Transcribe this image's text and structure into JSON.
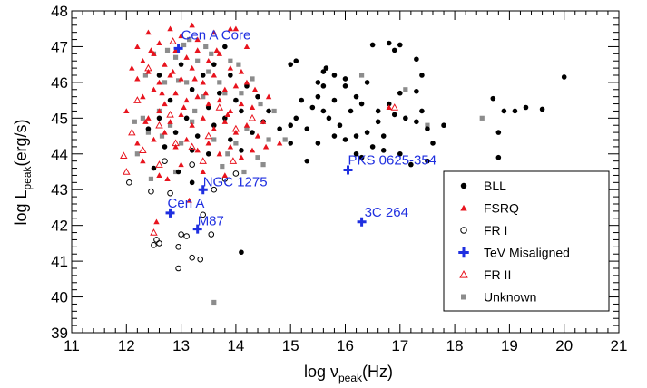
{
  "chart_data": {
    "type": "scatter",
    "xlabel_main": "log ν",
    "xlabel_sub": "peak",
    "xlabel_unit": "(Hz)",
    "ylabel_main": "log L",
    "ylabel_sub": "peak",
    "ylabel_unit": "(erg/s)",
    "xlim": [
      11,
      21
    ],
    "ylim": [
      39,
      48
    ],
    "xticks": [
      "11",
      "12",
      "13",
      "14",
      "15",
      "16",
      "17",
      "18",
      "19",
      "20",
      "21"
    ],
    "yticks": [
      "39",
      "40",
      "41",
      "42",
      "43",
      "44",
      "45",
      "46",
      "47",
      "48"
    ],
    "grid": false,
    "legend_position": "bottom-right",
    "colors": {
      "BLL": "#000000",
      "FSRQ": "#e8141e",
      "FR I": "#000000",
      "TeV Misaligned": "#1f2fe0",
      "FR II": "#e8141e",
      "Unknown": "#8c8c8c"
    },
    "legend": [
      {
        "name": "BLL",
        "marker": "filled-circle"
      },
      {
        "name": "FSRQ",
        "marker": "filled-triangle"
      },
      {
        "name": "FR I",
        "marker": "open-circle"
      },
      {
        "name": "TeV Misaligned",
        "marker": "cross"
      },
      {
        "name": "FR II",
        "marker": "open-triangle"
      },
      {
        "name": "Unknown",
        "marker": "filled-square"
      }
    ],
    "annotations": [
      {
        "text": "Cen A Core",
        "x": 13.0,
        "y": 47.2
      },
      {
        "text": "NGC 1275",
        "x": 13.4,
        "y": 43.1
      },
      {
        "text": "Cen A",
        "x": 12.75,
        "y": 42.5
      },
      {
        "text": "M87",
        "x": 13.3,
        "y": 42.0
      },
      {
        "text": "PKS 0625-354",
        "x": 16.05,
        "y": 43.7
      },
      {
        "text": "3C 264",
        "x": 16.35,
        "y": 42.25
      }
    ],
    "series": [
      {
        "name": "TeV Misaligned",
        "points": [
          [
            12.95,
            46.95
          ],
          [
            13.4,
            43.0
          ],
          [
            12.8,
            42.35
          ],
          [
            13.3,
            41.9
          ],
          [
            16.05,
            43.55
          ],
          [
            16.3,
            42.1
          ]
        ]
      },
      {
        "name": "BLL",
        "points": [
          [
            15.0,
            46.5
          ],
          [
            15.1,
            46.6
          ],
          [
            15.5,
            46.0
          ],
          [
            15.6,
            46.3
          ],
          [
            15.65,
            46.4
          ],
          [
            15.8,
            46.2
          ],
          [
            16.0,
            45.9
          ],
          [
            16.2,
            45.6
          ],
          [
            16.4,
            46.0
          ],
          [
            16.5,
            47.05
          ],
          [
            16.8,
            47.1
          ],
          [
            16.9,
            46.9
          ],
          [
            17.0,
            47.05
          ],
          [
            17.3,
            46.65
          ],
          [
            17.4,
            46.2
          ],
          [
            17.3,
            45.75
          ],
          [
            16.8,
            45.4
          ],
          [
            16.6,
            44.9
          ],
          [
            16.5,
            44.2
          ],
          [
            16.3,
            43.9
          ],
          [
            16.0,
            44.4
          ],
          [
            15.9,
            44.8
          ],
          [
            15.6,
            45.2
          ],
          [
            15.4,
            45.3
          ],
          [
            15.3,
            44.7
          ],
          [
            15.1,
            45.0
          ],
          [
            15.0,
            44.8
          ],
          [
            15.2,
            45.5
          ],
          [
            15.5,
            45.6
          ],
          [
            15.7,
            45.0
          ],
          [
            16.1,
            45.2
          ],
          [
            16.3,
            45.4
          ],
          [
            16.6,
            45.2
          ],
          [
            16.9,
            45.1
          ],
          [
            17.1,
            45.0
          ],
          [
            17.3,
            44.9
          ],
          [
            17.5,
            44.7
          ],
          [
            17.6,
            44.3
          ],
          [
            17.5,
            43.8
          ],
          [
            17.2,
            43.7
          ],
          [
            17.0,
            44.0
          ],
          [
            16.7,
            44.1
          ],
          [
            16.4,
            44.6
          ],
          [
            16.2,
            44.5
          ],
          [
            15.8,
            44.5
          ],
          [
            15.5,
            44.3
          ],
          [
            15.3,
            43.8
          ],
          [
            15.0,
            44.3
          ],
          [
            14.8,
            44.7
          ],
          [
            14.6,
            45.2
          ],
          [
            14.5,
            44.9
          ],
          [
            14.4,
            45.6
          ],
          [
            14.2,
            45.9
          ],
          [
            14.0,
            45.5
          ],
          [
            13.9,
            46.2
          ],
          [
            13.8,
            45.0
          ],
          [
            13.6,
            44.8
          ],
          [
            13.5,
            45.3
          ],
          [
            13.3,
            44.5
          ],
          [
            13.2,
            45.8
          ],
          [
            13.1,
            45.0
          ],
          [
            13.0,
            46.5
          ],
          [
            12.9,
            44.6
          ],
          [
            12.8,
            45.5
          ],
          [
            12.7,
            44.2
          ],
          [
            12.6,
            45.0
          ],
          [
            12.5,
            43.6
          ],
          [
            13.2,
            44.1
          ],
          [
            13.4,
            46.2
          ],
          [
            13.6,
            46.5
          ],
          [
            13.8,
            47.0
          ],
          [
            13.9,
            44.4
          ],
          [
            14.1,
            44.1
          ],
          [
            14.3,
            44.6
          ],
          [
            14.1,
            45.2
          ],
          [
            13.7,
            45.7
          ],
          [
            13.5,
            44.0
          ],
          [
            12.4,
            44.7
          ],
          [
            12.6,
            46.2
          ],
          [
            18.7,
            45.55
          ],
          [
            18.8,
            44.6
          ],
          [
            18.8,
            43.9
          ],
          [
            18.9,
            45.2
          ],
          [
            19.1,
            45.2
          ],
          [
            19.3,
            45.3
          ],
          [
            19.6,
            45.25
          ],
          [
            20.0,
            46.15
          ],
          [
            17.0,
            45.7
          ],
          [
            16.0,
            46.1
          ],
          [
            15.8,
            45.5
          ],
          [
            14.1,
            41.25
          ],
          [
            13.2,
            43.2
          ],
          [
            12.95,
            43.5
          ],
          [
            16.7,
            44.5
          ],
          [
            17.8,
            44.8
          ],
          [
            17.4,
            45.2
          ],
          [
            15.6,
            45.9
          ],
          [
            16.2,
            44.0
          ]
        ]
      },
      {
        "name": "FSRQ",
        "points": [
          [
            12.2,
            47.0
          ],
          [
            12.4,
            47.4
          ],
          [
            12.6,
            47.1
          ],
          [
            12.8,
            47.5
          ],
          [
            13.0,
            47.3
          ],
          [
            13.3,
            47.2
          ],
          [
            13.6,
            47.4
          ],
          [
            13.9,
            47.5
          ],
          [
            14.0,
            47.5
          ],
          [
            12.3,
            46.6
          ],
          [
            12.5,
            46.8
          ],
          [
            12.7,
            46.5
          ],
          [
            12.9,
            46.9
          ],
          [
            13.1,
            46.7
          ],
          [
            13.3,
            46.9
          ],
          [
            13.5,
            46.6
          ],
          [
            13.7,
            46.8
          ],
          [
            13.9,
            46.4
          ],
          [
            14.1,
            46.3
          ],
          [
            12.2,
            46.1
          ],
          [
            12.4,
            46.3
          ],
          [
            12.6,
            46.0
          ],
          [
            12.8,
            46.2
          ],
          [
            13.0,
            46.1
          ],
          [
            13.2,
            46.4
          ],
          [
            13.4,
            46.0
          ],
          [
            13.6,
            46.2
          ],
          [
            13.8,
            45.8
          ],
          [
            14.0,
            45.9
          ],
          [
            14.2,
            46.0
          ],
          [
            12.3,
            45.6
          ],
          [
            12.5,
            45.8
          ],
          [
            12.7,
            45.4
          ],
          [
            12.9,
            45.7
          ],
          [
            13.1,
            45.5
          ],
          [
            13.3,
            45.6
          ],
          [
            13.5,
            45.4
          ],
          [
            13.7,
            45.5
          ],
          [
            13.9,
            45.2
          ],
          [
            14.1,
            45.4
          ],
          [
            14.3,
            45.3
          ],
          [
            12.4,
            45.0
          ],
          [
            12.6,
            45.2
          ],
          [
            12.8,
            44.9
          ],
          [
            13.0,
            45.1
          ],
          [
            13.2,
            44.8
          ],
          [
            13.4,
            45.0
          ],
          [
            13.6,
            44.7
          ],
          [
            13.8,
            44.9
          ],
          [
            14.0,
            44.6
          ],
          [
            14.2,
            44.8
          ],
          [
            14.4,
            44.5
          ],
          [
            12.5,
            44.4
          ],
          [
            12.7,
            44.6
          ],
          [
            12.9,
            44.2
          ],
          [
            13.1,
            44.4
          ],
          [
            13.3,
            44.1
          ],
          [
            13.5,
            44.3
          ],
          [
            13.7,
            44.0
          ],
          [
            13.9,
            44.2
          ],
          [
            14.1,
            43.9
          ],
          [
            14.3,
            44.1
          ],
          [
            12.1,
            46.4
          ],
          [
            12.0,
            45.2
          ],
          [
            12.2,
            44.3
          ],
          [
            12.3,
            43.8
          ],
          [
            12.6,
            43.4
          ],
          [
            13.0,
            43.7
          ],
          [
            13.4,
            43.5
          ],
          [
            13.8,
            43.4
          ],
          [
            14.5,
            44.9
          ],
          [
            14.6,
            45.6
          ],
          [
            14.8,
            44.3
          ],
          [
            14.2,
            47.0
          ],
          [
            13.2,
            47.6
          ],
          [
            12.85,
            46.3
          ],
          [
            13.05,
            45.3
          ],
          [
            13.25,
            46.1
          ],
          [
            13.45,
            45.7
          ],
          [
            13.65,
            46.9
          ],
          [
            13.85,
            45.1
          ],
          [
            12.45,
            46.9
          ],
          [
            12.65,
            45.7
          ],
          [
            12.35,
            44.9
          ],
          [
            14.35,
            45.8
          ],
          [
            14.55,
            44.2
          ],
          [
            12.55,
            42.1
          ],
          [
            12.75,
            43.3
          ],
          [
            13.15,
            42.7
          ],
          [
            16.8,
            45.3
          ]
        ]
      },
      {
        "name": "FR I",
        "points": [
          [
            12.05,
            43.2
          ],
          [
            12.45,
            42.95
          ],
          [
            12.8,
            42.9
          ],
          [
            12.55,
            41.6
          ],
          [
            12.6,
            41.5
          ],
          [
            12.5,
            41.45
          ],
          [
            13.0,
            41.75
          ],
          [
            12.95,
            41.4
          ],
          [
            12.95,
            40.8
          ],
          [
            13.2,
            41.1
          ],
          [
            13.35,
            41.05
          ],
          [
            13.1,
            41.7
          ],
          [
            13.55,
            41.75
          ],
          [
            13.4,
            42.3
          ],
          [
            13.6,
            43.0
          ],
          [
            13.8,
            43.3
          ],
          [
            14.0,
            43.45
          ],
          [
            13.2,
            43.7
          ],
          [
            12.7,
            43.8
          ]
        ]
      },
      {
        "name": "FR II",
        "points": [
          [
            11.95,
            43.95
          ],
          [
            12.0,
            43.5
          ],
          [
            12.3,
            44.1
          ],
          [
            12.6,
            43.7
          ],
          [
            12.9,
            44.3
          ],
          [
            13.2,
            44.2
          ],
          [
            13.4,
            43.8
          ],
          [
            12.5,
            41.8
          ],
          [
            12.6,
            44.8
          ],
          [
            12.2,
            45.5
          ],
          [
            12.4,
            46.4
          ],
          [
            12.8,
            45.1
          ],
          [
            13.5,
            44.5
          ],
          [
            13.7,
            45.3
          ],
          [
            14.0,
            44.7
          ],
          [
            14.3,
            45.0
          ],
          [
            12.85,
            47.15
          ],
          [
            16.9,
            45.3
          ],
          [
            13.95,
            43.8
          ],
          [
            12.1,
            44.6
          ]
        ]
      },
      {
        "name": "Unknown",
        "points": [
          [
            12.2,
            44.0
          ],
          [
            12.4,
            44.6
          ],
          [
            12.6,
            45.2
          ],
          [
            12.8,
            44.8
          ],
          [
            13.0,
            44.3
          ],
          [
            13.2,
            44.9
          ],
          [
            13.4,
            45.6
          ],
          [
            13.6,
            44.4
          ],
          [
            13.8,
            45.7
          ],
          [
            14.0,
            44.3
          ],
          [
            14.2,
            44.7
          ],
          [
            14.4,
            43.9
          ],
          [
            14.6,
            44.4
          ],
          [
            14.5,
            43.7
          ],
          [
            14.7,
            45.2
          ],
          [
            12.5,
            46.8
          ],
          [
            12.7,
            46.0
          ],
          [
            12.9,
            46.7
          ],
          [
            13.1,
            46.0
          ],
          [
            13.3,
            46.6
          ],
          [
            13.5,
            46.3
          ],
          [
            13.7,
            46.0
          ],
          [
            13.9,
            46.6
          ],
          [
            14.1,
            45.7
          ],
          [
            14.3,
            46.1
          ],
          [
            12.3,
            45.0
          ],
          [
            12.9,
            43.5
          ],
          [
            13.6,
            39.85
          ],
          [
            17.1,
            45.8
          ],
          [
            17.5,
            44.8
          ],
          [
            16.3,
            46.2
          ],
          [
            18.5,
            45.0
          ],
          [
            14.9,
            44.4
          ],
          [
            13.05,
            47.05
          ],
          [
            12.35,
            46.2
          ],
          [
            12.75,
            46.9
          ],
          [
            12.95,
            46.05
          ],
          [
            13.15,
            47.2
          ],
          [
            13.45,
            47.0
          ],
          [
            13.25,
            45.2
          ],
          [
            13.55,
            46.8
          ],
          [
            14.05,
            46.5
          ],
          [
            13.85,
            44.0
          ],
          [
            12.65,
            44.5
          ],
          [
            12.15,
            44.9
          ],
          [
            14.45,
            45.4
          ],
          [
            12.45,
            43.3
          ],
          [
            13.75,
            43.65
          ],
          [
            14.15,
            43.5
          ]
        ]
      }
    ]
  }
}
